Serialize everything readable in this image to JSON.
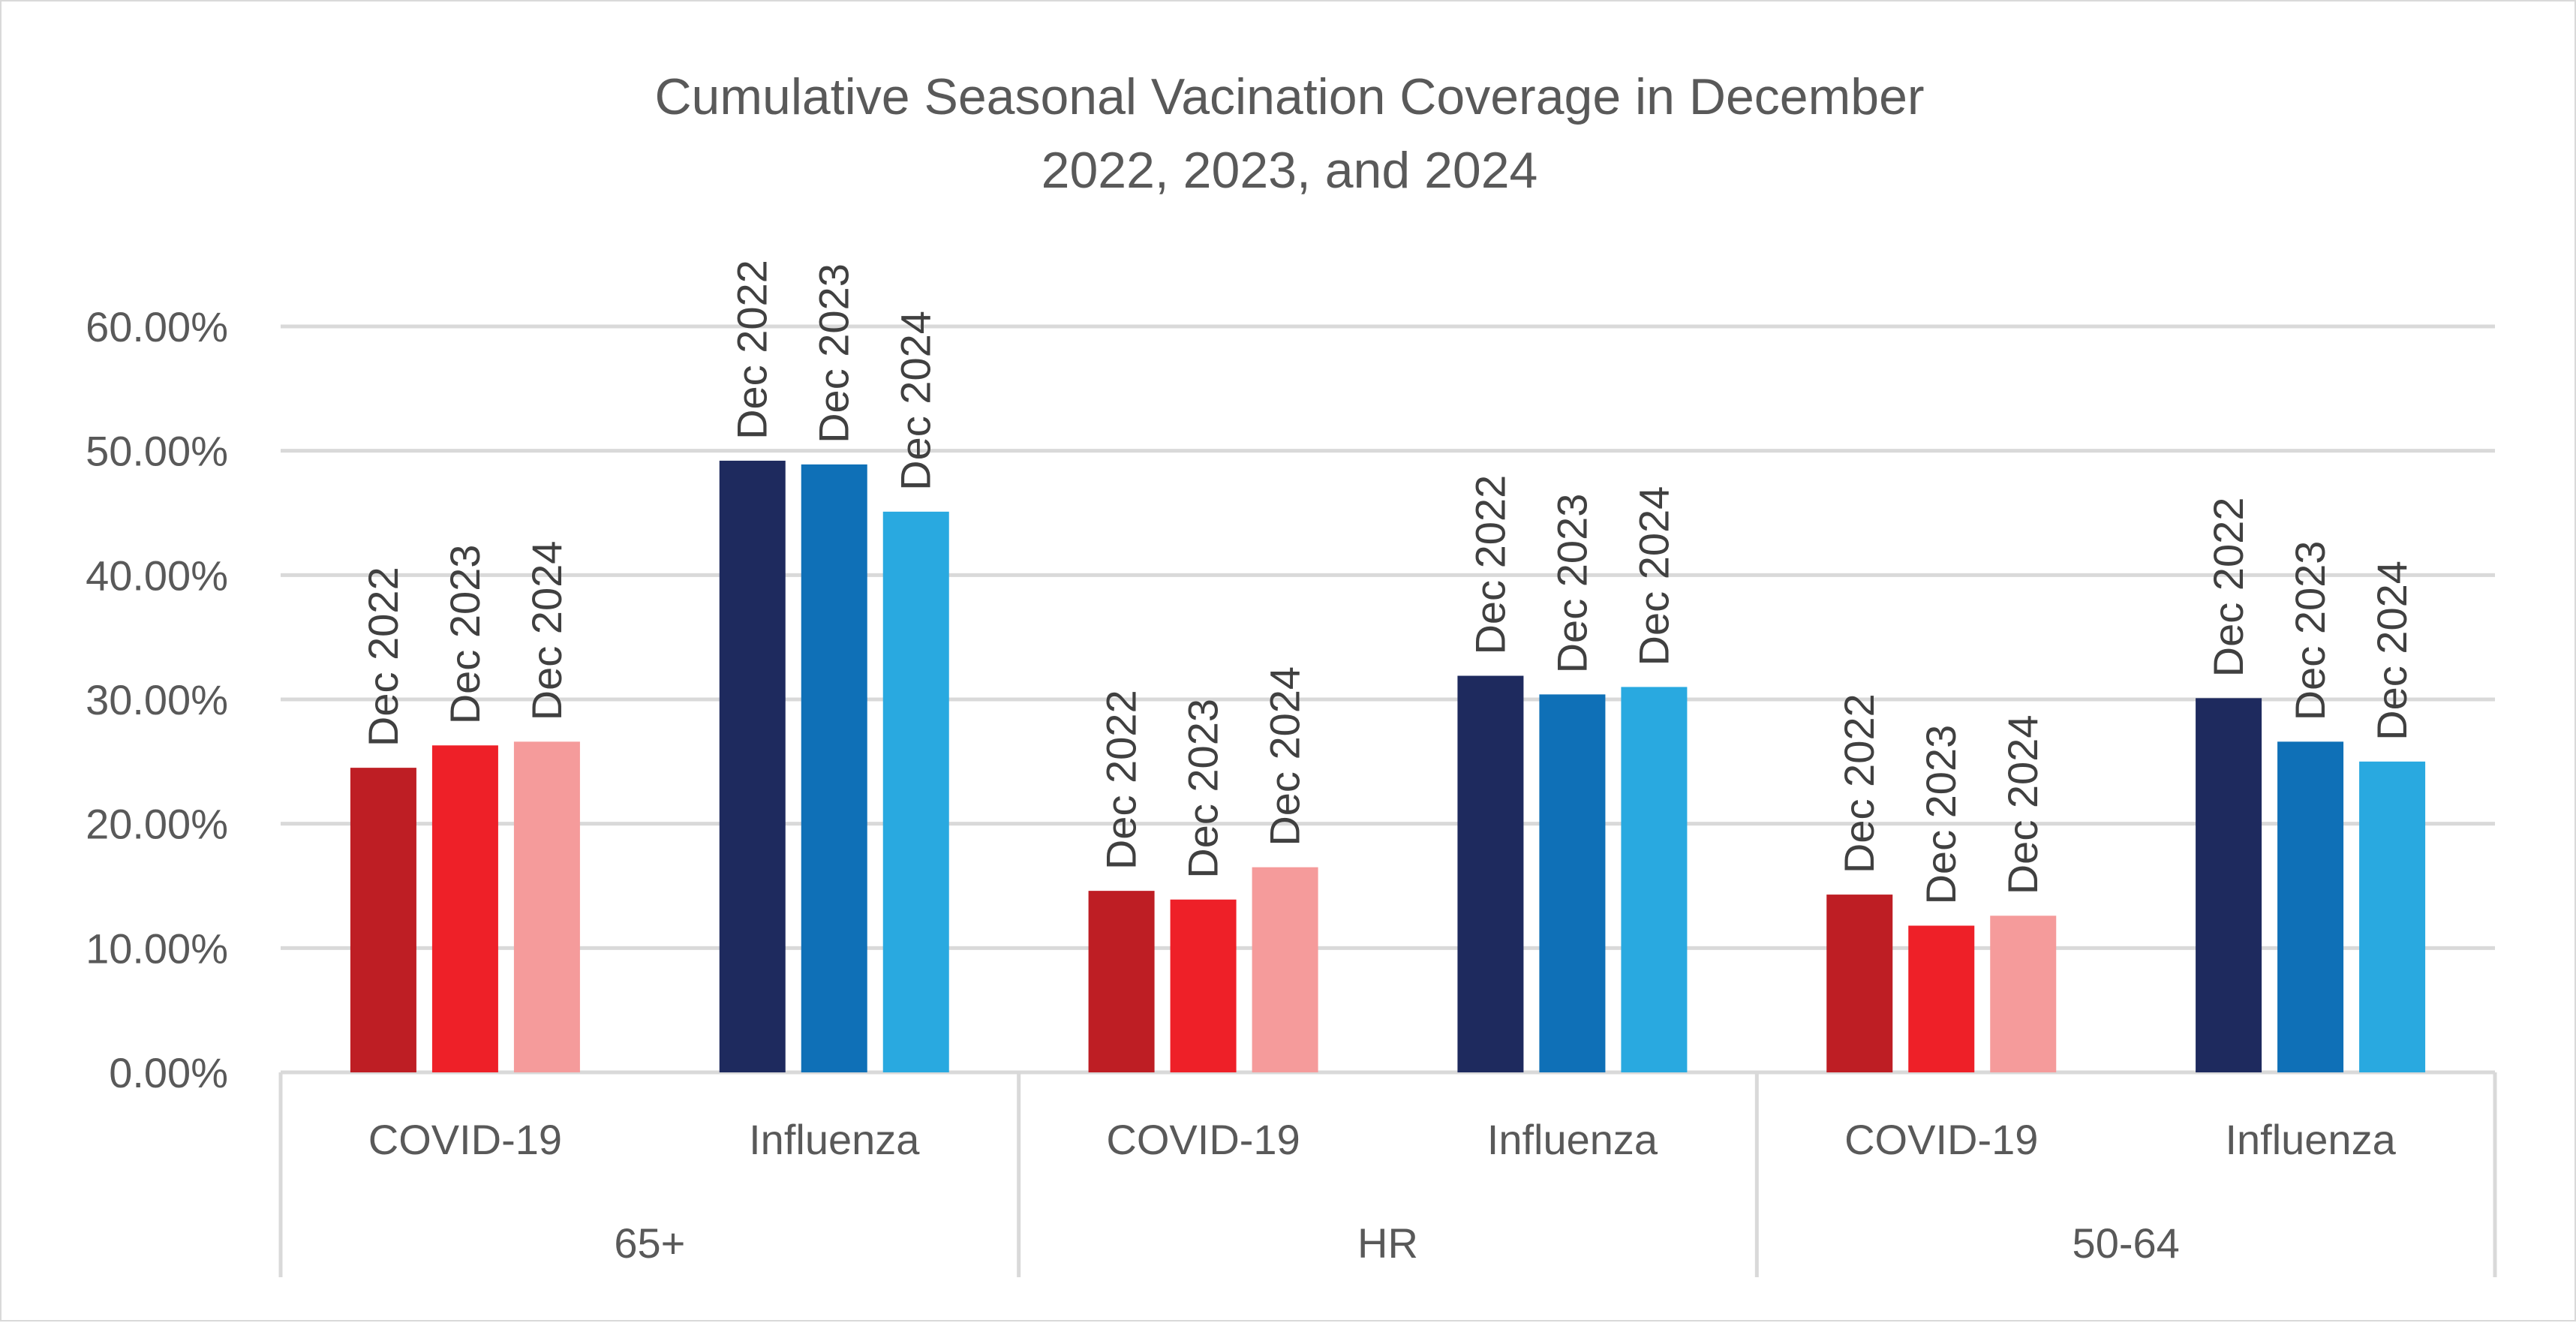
{
  "chart_data": {
    "type": "bar",
    "title": "Cumulative Seasonal Vacination Coverage in December",
    "subtitle": "2022, 2023, and 2024",
    "xlabel": "",
    "ylabel": "",
    "ylim": [
      0,
      0.6
    ],
    "yticks": [
      "0.00%",
      "10.00%",
      "20.00%",
      "30.00%",
      "40.00%",
      "50.00%",
      "60.00%"
    ],
    "grid": true,
    "legend": "none",
    "bar_label_text": [
      "Dec 2022",
      "Dec 2023",
      "Dec 2024"
    ],
    "groups": [
      {
        "label": "65+",
        "categories": [
          {
            "label": "COVID-19",
            "values": [
              0.245,
              0.263,
              0.266
            ],
            "colors": [
              "#be1e24",
              "#ee2028",
              "#f59b9b"
            ]
          },
          {
            "label": "Influenza",
            "values": [
              0.492,
              0.489,
              0.451
            ],
            "colors": [
              "#1e2a5e",
              "#0f70b7",
              "#29a9e0"
            ]
          }
        ]
      },
      {
        "label": "HR",
        "categories": [
          {
            "label": "COVID-19",
            "values": [
              0.146,
              0.139,
              0.165
            ],
            "colors": [
              "#be1e24",
              "#ee2028",
              "#f59b9b"
            ]
          },
          {
            "label": "Influenza",
            "values": [
              0.319,
              0.304,
              0.31
            ],
            "colors": [
              "#1e2a5e",
              "#0f70b7",
              "#29a9e0"
            ]
          }
        ]
      },
      {
        "label": "50-64",
        "categories": [
          {
            "label": "COVID-19",
            "values": [
              0.143,
              0.118,
              0.126
            ],
            "colors": [
              "#be1e24",
              "#ee2028",
              "#f59b9b"
            ]
          },
          {
            "label": "Influenza",
            "values": [
              0.301,
              0.266,
              0.25
            ],
            "colors": [
              "#1e2a5e",
              "#0f70b7",
              "#29a9e0"
            ]
          }
        ]
      }
    ],
    "colors": {
      "grid": "#d9d9d9",
      "axis_text": "#595959",
      "bar_label_text": "#404040"
    }
  }
}
